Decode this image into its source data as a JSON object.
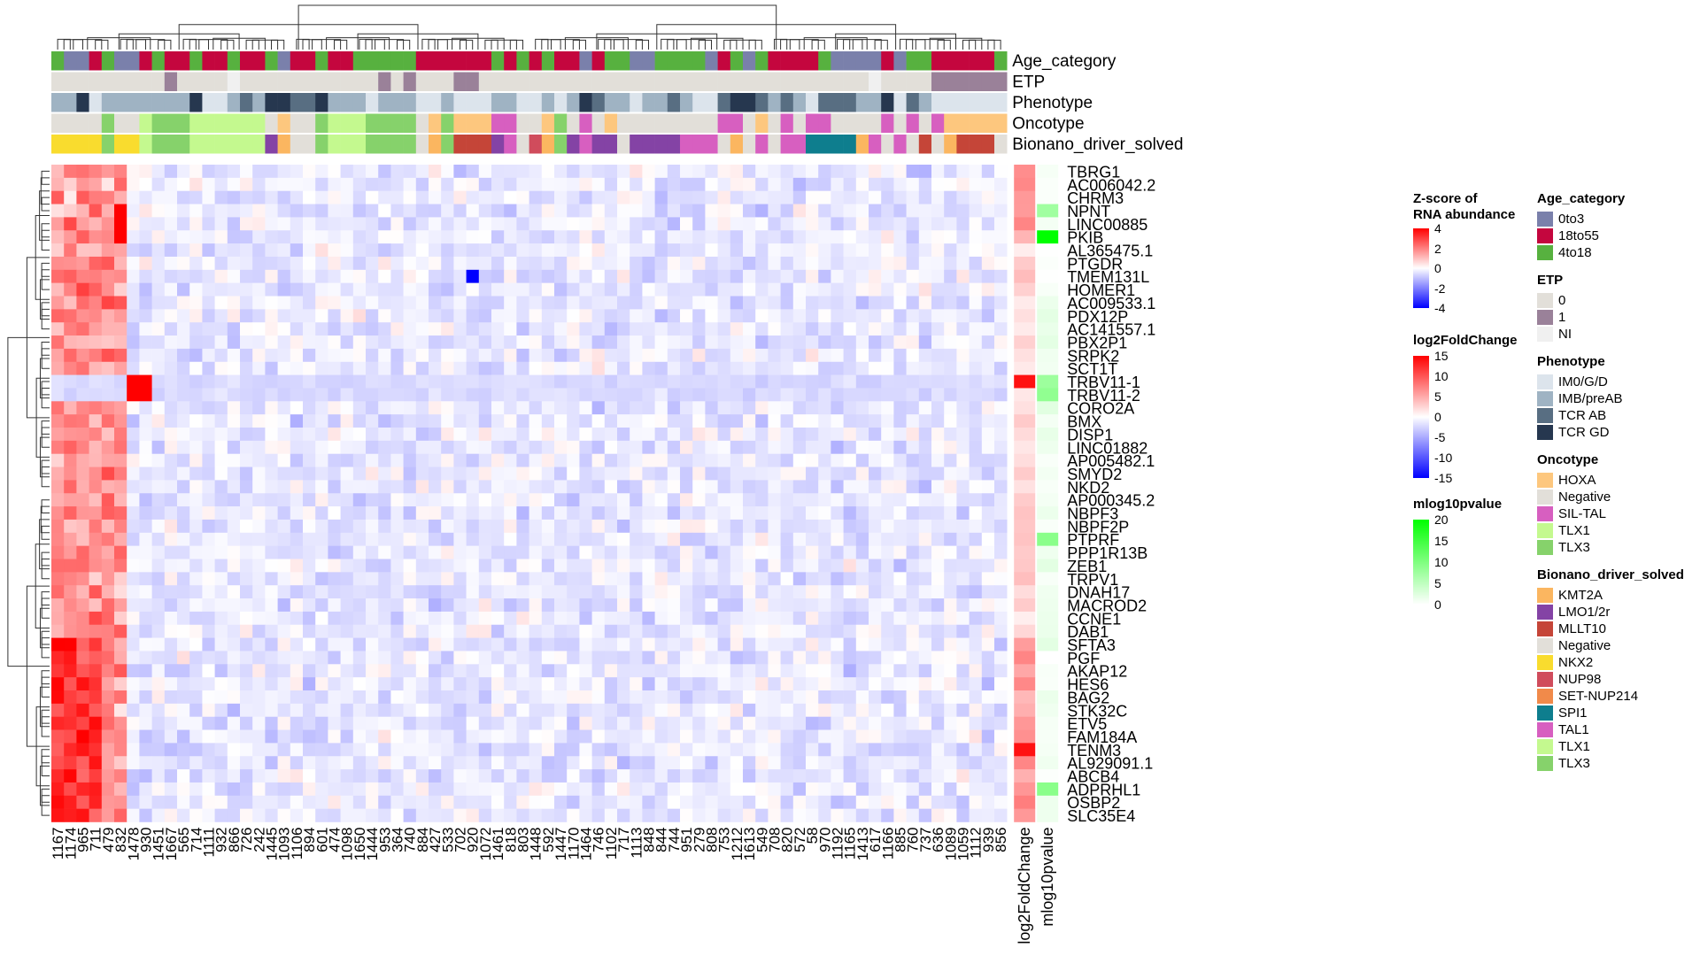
{
  "chart_data": {
    "type": "heatmap",
    "samples": [
      "1167",
      "1174",
      "965",
      "711",
      "479",
      "832",
      "1478",
      "930",
      "1451",
      "1667",
      "565",
      "714",
      "1111",
      "932",
      "866",
      "726",
      "242",
      "1445",
      "1093",
      "1106",
      "894",
      "601",
      "474",
      "1098",
      "1650",
      "1444",
      "953",
      "364",
      "740",
      "884",
      "427",
      "533",
      "702",
      "920",
      "1072",
      "1461",
      "818",
      "803",
      "1448",
      "592",
      "1447",
      "1170",
      "1464",
      "746",
      "1102",
      "717",
      "1113",
      "848",
      "844",
      "744",
      "951",
      "279",
      "808",
      "753",
      "1212",
      "1613",
      "549",
      "708",
      "820",
      "572",
      "58",
      "970",
      "1192",
      "1165",
      "1413",
      "617",
      "1166",
      "885",
      "760",
      "737",
      "636",
      "1089",
      "1059",
      "1112",
      "939",
      "856"
    ],
    "genes": [
      "TBRG1",
      "AC006042.2",
      "CHRM3",
      "NPNT",
      "LINC00885",
      "PKIB",
      "AL365475.1",
      "PTGDR",
      "TMEM131L",
      "HOMER1",
      "AC009533.1",
      "PDX12P",
      "AC141557.1",
      "PBX2P1",
      "SRPK2",
      "SCT1T",
      "TRBV11-1",
      "TRBV11-2",
      "CORO2A",
      "BMX",
      "DISP1",
      "LINC01882",
      "AP005482.1",
      "SMYD2",
      "NKD2",
      "AP000345.2",
      "NBPF3",
      "NBPF2P",
      "PTPRF",
      "PPP1R13B",
      "ZEB1",
      "TRPV1",
      "DNAH17",
      "MACROD2",
      "CCNE1",
      "DAB1",
      "SFTA3",
      "PGF",
      "AKAP12",
      "HES6",
      "BAG2",
      "STK32C",
      "ETV5",
      "FAM184A",
      "TENM3",
      "AL929091.1",
      "ABCB4",
      "ADPRHL1",
      "OSBP2",
      "SLC35E4"
    ],
    "annotation_rows": [
      "Age_category",
      "ETP",
      "Phenotype",
      "Oncotype",
      "Bionano_driver_solved"
    ],
    "extra_columns": [
      "log2FoldChange",
      "mlog10pvalue"
    ],
    "annotations": {
      "Age_category": [
        "4to18",
        "0to3",
        "0to3",
        "18to55",
        "4to18",
        "0to3",
        "0to3",
        "18to55",
        "4to18",
        "18to55",
        "18to55",
        "4to18",
        "18to55",
        "18to55",
        "4to18",
        "18to55",
        "18to55",
        "4to18",
        "0to3",
        "18to55",
        "18to55",
        "4to18",
        "18to55",
        "18to55",
        "4to18",
        "4to18",
        "4to18",
        "4to18",
        "4to18",
        "18to55",
        "18to55",
        "18to55",
        "18to55",
        "18to55",
        "18to55",
        "4to18",
        "18to55",
        "4to18",
        "18to55",
        "4to18",
        "18to55",
        "18to55",
        "0to3",
        "18to55",
        "4to18",
        "4to18",
        "0to3",
        "0to3",
        "4to18",
        "4to18",
        "4to18",
        "4to18",
        "0to3",
        "18to55",
        "4to18",
        "0to3",
        "4to18",
        "18to55",
        "18to55",
        "18to55",
        "18to55",
        "4to18",
        "0to3",
        "0to3",
        "0to3",
        "0to3",
        "18to55",
        "0to3",
        "4to18",
        "4to18",
        "18to55",
        "18to55",
        "18to55",
        "18to55",
        "18to55",
        "4to18"
      ],
      "ETP": [
        "0",
        "0",
        "0",
        "0",
        "0",
        "0",
        "0",
        "0",
        "0",
        "1",
        "0",
        "0",
        "0",
        "0",
        "NI",
        "0",
        "0",
        "0",
        "0",
        "0",
        "0",
        "0",
        "0",
        "0",
        "0",
        "0",
        "1",
        "0",
        "1",
        "0",
        "0",
        "0",
        "1",
        "1",
        "0",
        "0",
        "0",
        "0",
        "0",
        "0",
        "0",
        "0",
        "0",
        "0",
        "0",
        "0",
        "0",
        "0",
        "0",
        "0",
        "0",
        "0",
        "0",
        "0",
        "0",
        "0",
        "0",
        "0",
        "0",
        "0",
        "0",
        "0",
        "0",
        "0",
        "0",
        "NI",
        "0",
        "0",
        "0",
        "0",
        "1",
        "1",
        "1",
        "1",
        "1",
        "1"
      ],
      "Phenotype": [
        "IMB/preAB",
        "IMB/preAB",
        "TCR GD",
        "IM0/G/D",
        "IMB/preAB",
        "IMB/preAB",
        "IMB/preAB",
        "IMB/preAB",
        "IMB/preAB",
        "IMB/preAB",
        "IMB/preAB",
        "TCR GD",
        "IM0/G/D",
        "IM0/G/D",
        "IMB/preAB",
        "TCR AB",
        "IMB/preAB",
        "TCR GD",
        "TCR GD",
        "TCR AB",
        "TCR AB",
        "TCR GD",
        "IMB/preAB",
        "IMB/preAB",
        "IMB/preAB",
        "IM0/G/D",
        "IMB/preAB",
        "IMB/preAB",
        "IMB/preAB",
        "IM0/G/D",
        "IM0/G/D",
        "IMB/preAB",
        "IM0/G/D",
        "IM0/G/D",
        "IM0/G/D",
        "IMB/preAB",
        "IMB/preAB",
        "IM0/G/D",
        "IM0/G/D",
        "IMB/preAB",
        "IM0/G/D",
        "IMB/preAB",
        "TCR GD",
        "TCR AB",
        "IMB/preAB",
        "IMB/preAB",
        "IM0/G/D",
        "IMB/preAB",
        "IMB/preAB",
        "TCR AB",
        "IMB/preAB",
        "IM0/G/D",
        "IM0/G/D",
        "TCR AB",
        "TCR GD",
        "TCR GD",
        "TCR AB",
        "IMB/preAB",
        "TCR AB",
        "IMB/preAB",
        "IM0/G/D",
        "TCR AB",
        "TCR AB",
        "TCR AB",
        "IMB/preAB",
        "IMB/preAB",
        "TCR GD",
        "IM0/G/D",
        "TCR AB",
        "IMB/preAB",
        "IM0/G/D",
        "IM0/G/D",
        "IM0/G/D",
        "IM0/G/D",
        "IM0/G/D",
        "IM0/G/D"
      ],
      "Oncotype": [
        "Negative",
        "Negative",
        "Negative",
        "Negative",
        "TLX3",
        "Negative",
        "Negative",
        "TLX1",
        "TLX3",
        "TLX3",
        "TLX3",
        "TLX1",
        "TLX1",
        "TLX1",
        "TLX1",
        "TLX1",
        "TLX1",
        "Negative",
        "HOXA",
        "Negative",
        "Negative",
        "TLX3",
        "TLX1",
        "TLX1",
        "TLX1",
        "TLX3",
        "TLX3",
        "TLX3",
        "TLX3",
        "Negative",
        "HOXA",
        "TLX3",
        "HOXA",
        "HOXA",
        "HOXA",
        "SIL-TAL",
        "SIL-TAL",
        "Negative",
        "Negative",
        "HOXA",
        "TLX3",
        "Negative",
        "SIL-TAL",
        "Negative",
        "HOXA",
        "Negative",
        "Negative",
        "Negative",
        "Negative",
        "Negative",
        "Negative",
        "Negative",
        "Negative",
        "SIL-TAL",
        "SIL-TAL",
        "Negative",
        "HOXA",
        "Negative",
        "SIL-TAL",
        "Negative",
        "SIL-TAL",
        "SIL-TAL",
        "Negative",
        "Negative",
        "Negative",
        "Negative",
        "SIL-TAL",
        "Negative",
        "SIL-TAL",
        "Negative",
        "SIL-TAL",
        "HOXA",
        "HOXA",
        "HOXA",
        "HOXA",
        "HOXA"
      ],
      "Bionano_driver_solved": [
        "NKX2",
        "NKX2",
        "NKX2",
        "NKX2",
        "TLX3",
        "NKX2",
        "NKX2",
        "TLX1",
        "TLX3",
        "TLX3",
        "TLX3",
        "TLX1",
        "TLX1",
        "TLX1",
        "TLX1",
        "TLX1",
        "TLX1",
        "LMO1/2r",
        "KMT2A",
        "Negative",
        "Negative",
        "TLX3",
        "TLX1",
        "TLX1",
        "TLX1",
        "TLX3",
        "TLX3",
        "TLX3",
        "TLX3",
        "Negative",
        "KMT2A",
        "TLX3",
        "MLLT10",
        "MLLT10",
        "MLLT10",
        "LMO1/2r",
        "TAL1",
        "Negative",
        "NUP98",
        "KMT2A",
        "TLX3",
        "LMO1/2r",
        "TAL1",
        "LMO1/2r",
        "LMO1/2r",
        "Negative",
        "LMO1/2r",
        "LMO1/2r",
        "LMO1/2r",
        "LMO1/2r",
        "TAL1",
        "TAL1",
        "TAL1",
        "Negative",
        "KMT2A",
        "Negative",
        "TAL1",
        "Negative",
        "TAL1",
        "TAL1",
        "SPI1",
        "SPI1",
        "SPI1",
        "SPI1",
        "KMT2A",
        "TAL1",
        "Negative",
        "TAL1",
        "Negative",
        "MLLT10",
        "Negative",
        "KMT2A",
        "MLLT10",
        "MLLT10",
        "MLLT10",
        "Negative"
      ]
    },
    "legends": {
      "zscore": {
        "title_line1": "Z-score of",
        "title_line2": "RNA abundance",
        "ticks": [
          "4",
          "2",
          "0",
          "-2",
          "-4"
        ],
        "range": [
          -4,
          4
        ],
        "colors": [
          "#0000ff",
          "#ffffff",
          "#ff0000"
        ]
      },
      "log2fc": {
        "title": "log2FoldChange",
        "ticks": [
          "15",
          "10",
          "5",
          "0",
          "-5",
          "-10",
          "-15"
        ],
        "range": [
          -15,
          15
        ],
        "colors": [
          "#0000ff",
          "#ffffff",
          "#ff0000"
        ]
      },
      "mlog10p": {
        "title": "mlog10pvalue",
        "ticks": [
          "20",
          "15",
          "10",
          "5",
          "0"
        ],
        "range": [
          0,
          20
        ],
        "colors": [
          "#ffffff",
          "#00ff00"
        ]
      },
      "categorical": [
        {
          "title": "Age_category",
          "items": [
            {
              "label": "0to3",
              "color": "#7a80ab"
            },
            {
              "label": "18to55",
              "color": "#c4063e"
            },
            {
              "label": "4to18",
              "color": "#57b13f"
            }
          ]
        },
        {
          "title": "ETP",
          "items": [
            {
              "label": "0",
              "color": "#e2dfd9"
            },
            {
              "label": "1",
              "color": "#9a8199"
            },
            {
              "label": "NI",
              "color": "#f0f0f0"
            }
          ]
        },
        {
          "title": "Phenotype",
          "items": [
            {
              "label": "IM0/G/D",
              "color": "#dce4ec"
            },
            {
              "label": "IMB/preAB",
              "color": "#9fb3c3"
            },
            {
              "label": "TCR AB",
              "color": "#586e82"
            },
            {
              "label": "TCR GD",
              "color": "#26374f"
            }
          ]
        },
        {
          "title": "Oncotype",
          "items": [
            {
              "label": "HOXA",
              "color": "#fdc77e"
            },
            {
              "label": "Negative",
              "color": "#e2dfd9"
            },
            {
              "label": "SIL-TAL",
              "color": "#d75fc0"
            },
            {
              "label": "TLX1",
              "color": "#c4f98f"
            },
            {
              "label": "TLX3",
              "color": "#86d26b"
            }
          ]
        },
        {
          "title": "Bionano_driver_solved",
          "items": [
            {
              "label": "KMT2A",
              "color": "#fbb660"
            },
            {
              "label": "LMO1/2r",
              "color": "#8443a5"
            },
            {
              "label": "MLLT10",
              "color": "#c54538"
            },
            {
              "label": "Negative",
              "color": "#e2dfd9"
            },
            {
              "label": "NKX2",
              "color": "#f9dc2e"
            },
            {
              "label": "NUP98",
              "color": "#d04c5c"
            },
            {
              "label": "SET-NUP214",
              "color": "#f18a4a"
            },
            {
              "label": "SPI1",
              "color": "#0e7e8e"
            },
            {
              "label": "TAL1",
              "color": "#d75fc0"
            },
            {
              "label": "TLX1",
              "color": "#c4f98f"
            },
            {
              "label": "TLX3",
              "color": "#86d26b"
            }
          ]
        }
      ]
    }
  }
}
